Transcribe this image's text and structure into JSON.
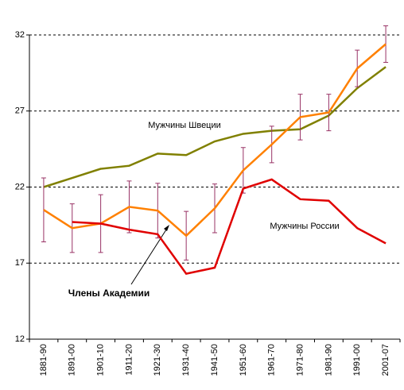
{
  "chart_data": {
    "type": "line",
    "categories": [
      "1881-90",
      "1891-00",
      "1901-10",
      "1911-20",
      "1921-30",
      "1931-40",
      "1941-50",
      "1951-60",
      "1961-70",
      "1971-80",
      "1981-90",
      "1991-00",
      "2001-07"
    ],
    "series": [
      {
        "name": "Мужчины Швеции",
        "color": "#808000",
        "values": [
          22.0,
          22.6,
          23.2,
          23.4,
          24.2,
          24.1,
          25.0,
          25.5,
          25.7,
          25.8,
          26.7,
          28.5,
          29.9
        ]
      },
      {
        "name": "Члены Академии",
        "color": "#ff8000",
        "values": [
          20.5,
          19.3,
          19.6,
          20.7,
          20.45,
          18.8,
          20.6,
          23.1,
          24.8,
          26.6,
          26.9,
          29.8,
          31.4
        ],
        "errors": [
          2.1,
          1.6,
          1.9,
          1.7,
          1.8,
          1.6,
          1.6,
          1.5,
          1.2,
          1.5,
          1.2,
          1.2,
          1.2
        ],
        "error_color": "#993366"
      },
      {
        "name": "Мужчины России",
        "color": "#e00000",
        "values": [
          null,
          19.7,
          19.6,
          19.2,
          18.9,
          16.3,
          16.7,
          21.9,
          22.5,
          21.2,
          21.1,
          19.3,
          18.3
        ]
      }
    ],
    "ylim": [
      12,
      32
    ],
    "yticks": [
      12,
      17,
      22,
      27,
      32
    ],
    "grid": true
  }
}
